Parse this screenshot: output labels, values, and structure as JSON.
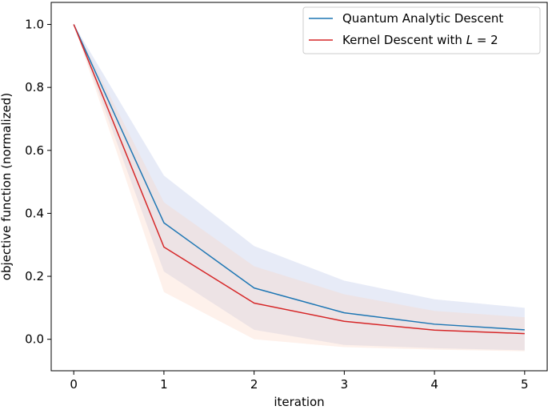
{
  "chart_data": {
    "type": "line",
    "xlabel": "iteration",
    "ylabel": "objective function (normalized)",
    "xlim": [
      -0.25,
      5.25
    ],
    "ylim": [
      -0.1,
      1.07
    ],
    "xticks": [
      0,
      1,
      2,
      3,
      4,
      5
    ],
    "xtick_labels": [
      "0",
      "1",
      "2",
      "3",
      "4",
      "5"
    ],
    "yticks": [
      0.0,
      0.2,
      0.4,
      0.6,
      0.8,
      1.0
    ],
    "ytick_labels": [
      "0.0",
      "0.2",
      "0.4",
      "0.6",
      "0.8",
      "1.0"
    ],
    "grid": false,
    "legend_position": "top-right",
    "x": [
      0,
      1,
      2,
      3,
      4,
      5
    ],
    "series": [
      {
        "name": "Quantum Analytic Descent",
        "legend_parts": [
          {
            "text": "Quantum Analytic Descent",
            "italic": false
          }
        ],
        "color": "#1f77b4",
        "band_color": "#b0bce4",
        "values": [
          1.0,
          0.37,
          0.163,
          0.084,
          0.048,
          0.03
        ],
        "upper": [
          1.0,
          0.52,
          0.296,
          0.186,
          0.127,
          0.1
        ],
        "lower": [
          1.0,
          0.215,
          0.03,
          -0.018,
          -0.028,
          -0.035
        ]
      },
      {
        "name": "Kernel Descent with L = 2",
        "legend_parts": [
          {
            "text": "Kernel Descent with ",
            "italic": false
          },
          {
            "text": "L",
            "italic": true
          },
          {
            "text": " = 2",
            "italic": false
          }
        ],
        "color": "#d62728",
        "band_color": "#fcd2bc",
        "values": [
          1.0,
          0.293,
          0.115,
          0.057,
          0.029,
          0.018
        ],
        "upper": [
          1.0,
          0.435,
          0.232,
          0.143,
          0.09,
          0.07
        ],
        "lower": [
          1.0,
          0.15,
          0.0,
          -0.025,
          -0.033,
          -0.038
        ]
      }
    ]
  }
}
